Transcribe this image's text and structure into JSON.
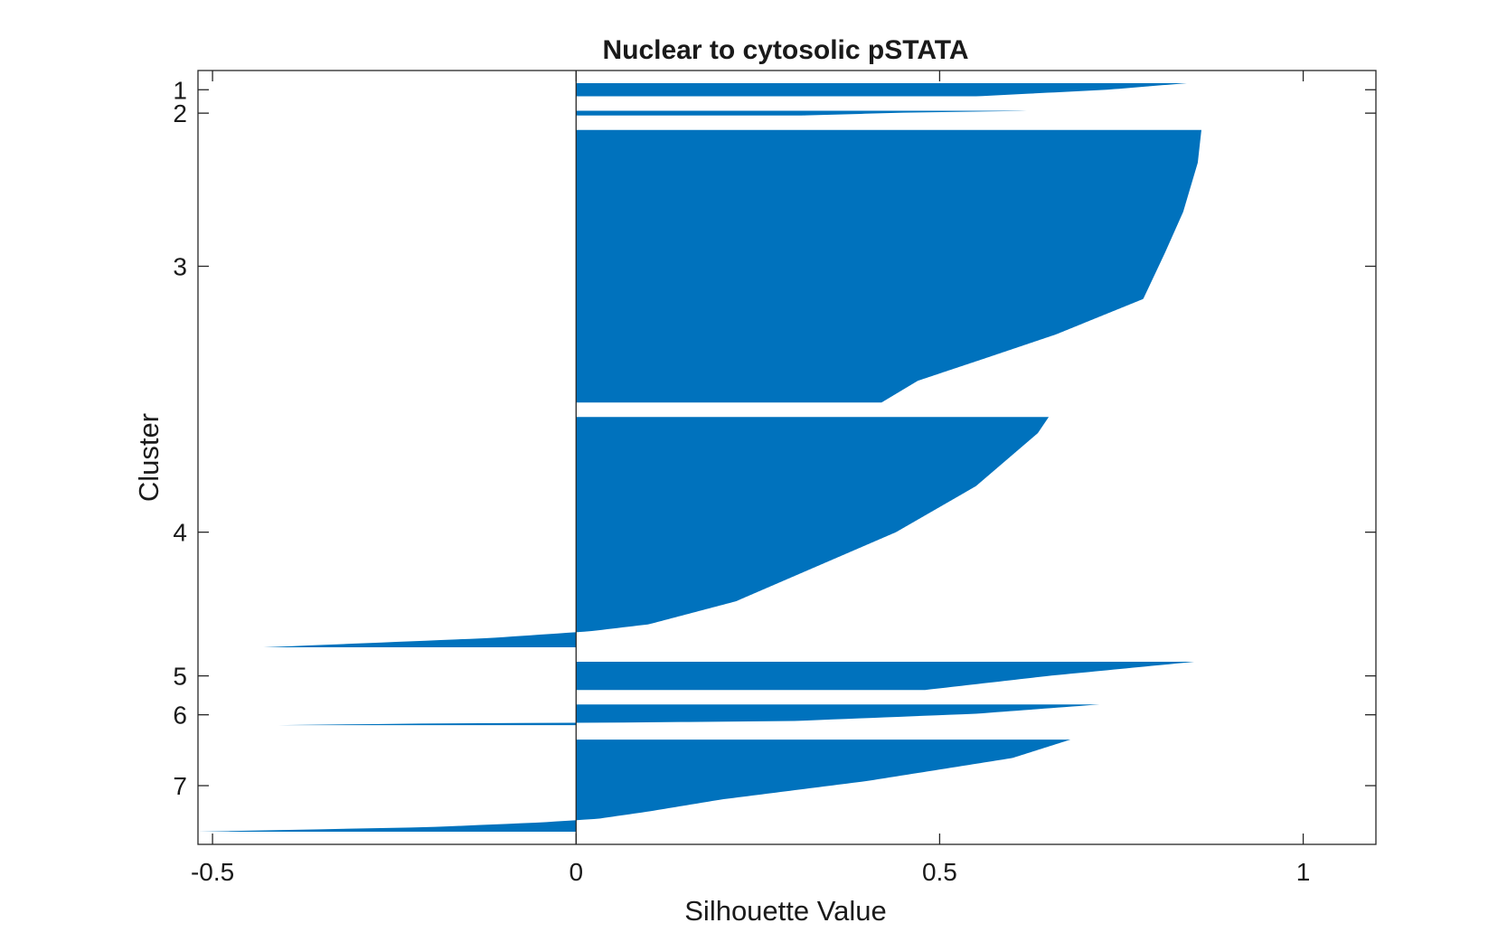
{
  "chart_data": {
    "type": "bar",
    "orientation": "horizontal",
    "title": "Nuclear to cytosolic pSTATA",
    "xlabel": "Silhouette Value",
    "ylabel": "Cluster",
    "xlim": [
      -0.52,
      1.1
    ],
    "xticks": [
      -0.5,
      0,
      0.5,
      1
    ],
    "xtick_labels": [
      "-0.5",
      "0",
      "0.5",
      "1"
    ],
    "ytick_labels": [
      "1",
      "2",
      "3",
      "4",
      "5",
      "6",
      "7"
    ],
    "grid": false,
    "color": "#0072bd",
    "clusters": [
      {
        "label": "1",
        "points": 14,
        "shape": [
          [
            0,
            0.84
          ],
          [
            0.5,
            0.73
          ],
          [
            1,
            0.55
          ]
        ]
      },
      {
        "label": "2",
        "points": 5,
        "shape": [
          [
            0,
            0.62
          ],
          [
            0.4,
            0.45
          ],
          [
            1,
            0.31
          ]
        ]
      },
      {
        "label": "3",
        "points": 290,
        "shape": [
          [
            0,
            0.86
          ],
          [
            0.12,
            0.855
          ],
          [
            0.3,
            0.835
          ],
          [
            0.45,
            0.81
          ],
          [
            0.62,
            0.78
          ],
          [
            0.75,
            0.66
          ],
          [
            0.84,
            0.56
          ],
          [
            0.92,
            0.47
          ],
          [
            1,
            0.42
          ]
        ]
      },
      {
        "label": "4",
        "points": 245,
        "shape": [
          [
            0,
            0.65
          ],
          [
            0.07,
            0.635
          ],
          [
            0.3,
            0.55
          ],
          [
            0.5,
            0.44
          ],
          [
            0.65,
            0.33
          ],
          [
            0.8,
            0.22
          ],
          [
            0.9,
            0.1
          ],
          [
            0.93,
            0.02
          ],
          [
            0.96,
            -0.12
          ],
          [
            1,
            -0.43
          ]
        ]
      },
      {
        "label": "5",
        "points": 30,
        "shape": [
          [
            0,
            0.85
          ],
          [
            0.5,
            0.65
          ],
          [
            1,
            0.48
          ]
        ]
      },
      {
        "label": "6",
        "points": 22,
        "shape": [
          [
            0,
            0.72
          ],
          [
            0.45,
            0.55
          ],
          [
            0.8,
            0.3
          ],
          [
            0.88,
            0.05
          ],
          [
            0.92,
            -0.2
          ],
          [
            1,
            -0.41
          ]
        ]
      },
      {
        "label": "7",
        "points": 98,
        "shape": [
          [
            0,
            0.68
          ],
          [
            0.2,
            0.6
          ],
          [
            0.45,
            0.4
          ],
          [
            0.65,
            0.2
          ],
          [
            0.78,
            0.1
          ],
          [
            0.86,
            0.03
          ],
          [
            0.9,
            -0.05
          ],
          [
            0.95,
            -0.2
          ],
          [
            1,
            -0.52
          ]
        ]
      }
    ]
  }
}
